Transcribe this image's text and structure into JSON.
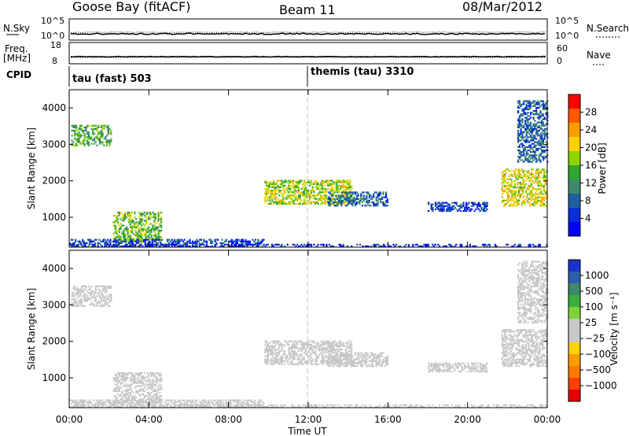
{
  "header": {
    "station": "Goose Bay (fitACF)",
    "beam": "Beam 11",
    "date": "08/Mar/2012"
  },
  "strips": {
    "nsky_label": "N.Sky",
    "nsearch_label": "N.Search",
    "nsky_ticks": [
      "10^5",
      "10^0"
    ],
    "nsearch_ticks": [
      "10^5",
      "10^0"
    ],
    "freq_label_1": "Freq.",
    "freq_label_2": "[MHz]",
    "freq_ticks": [
      "18",
      "8"
    ],
    "nave_label": "Nave",
    "nave_ticks": [
      "60",
      "0"
    ],
    "cpid_label": "CPID",
    "cpid_modes": [
      {
        "text": "tau (fast) 503",
        "start_hour": 0
      },
      {
        "text": "themis (tau) 3310",
        "start_hour": 12
      }
    ]
  },
  "axes": {
    "ylabel": "Slant Range [km]",
    "xlabel": "Time UT",
    "x_ticks": [
      "00:00",
      "04:00",
      "08:00",
      "12:00",
      "16:00",
      "20:00",
      "00:00"
    ],
    "y_ticks": [
      "4000",
      "3000",
      "2000",
      "1000"
    ]
  },
  "power_colorbar": {
    "label": "Power [dB]",
    "ticks": [
      "28",
      "24",
      "20",
      "16",
      "12",
      "8",
      "4"
    ],
    "colors": [
      "#ff0000",
      "#ff5a00",
      "#ff9c00",
      "#ffd200",
      "#8fd400",
      "#2ea82e",
      "#3c8a6a",
      "#1f5fa0",
      "#0a2fd8",
      "#0000ff"
    ]
  },
  "velocity_colorbar": {
    "label": "Velocity [m s⁻¹]",
    "ticks": [
      "1000",
      "500",
      "100",
      "25",
      "−25",
      "−100",
      "−500",
      "−1000"
    ],
    "colors": [
      "#1a33cc",
      "#2f5faa",
      "#3c8a6a",
      "#3ab03a",
      "#7fd23a",
      "#c8c8c8",
      "#c8c8c8",
      "#ffd200",
      "#ff9c00",
      "#ff7a00",
      "#ff4000",
      "#e60000"
    ]
  },
  "chart_data": [
    {
      "type": "scatter",
      "title": "Power [dB]",
      "xlabel": "Time UT",
      "ylabel": "Slant Range [km]",
      "xlim": [
        0,
        24
      ],
      "ylim": [
        180,
        4500
      ],
      "clim": [
        0,
        32
      ],
      "regions": [
        {
          "t_start": 0.1,
          "t_end": 2.1,
          "r_start": 2950,
          "r_end": 3500,
          "value": 14
        },
        {
          "t_start": 2.2,
          "t_end": 4.6,
          "r_start": 300,
          "r_end": 1150,
          "value": 16
        },
        {
          "t_start": 0.0,
          "t_end": 9.8,
          "r_start": 180,
          "r_end": 400,
          "value": 6
        },
        {
          "t_start": 9.8,
          "t_end": 14.2,
          "r_start": 1350,
          "r_end": 2000,
          "value": 18
        },
        {
          "t_start": 13.0,
          "t_end": 16.0,
          "r_start": 1300,
          "r_end": 1700,
          "value": 8
        },
        {
          "t_start": 18.0,
          "t_end": 21.0,
          "r_start": 1150,
          "r_end": 1400,
          "value": 6
        },
        {
          "t_start": 21.7,
          "t_end": 24.0,
          "r_start": 1300,
          "r_end": 2300,
          "value": 20
        },
        {
          "t_start": 22.5,
          "t_end": 24.0,
          "r_start": 2500,
          "r_end": 4200,
          "value": 8
        },
        {
          "t_start": 0.0,
          "t_end": 24.0,
          "r_start": 180,
          "r_end": 260,
          "value": 4
        }
      ]
    },
    {
      "type": "scatter",
      "title": "Velocity [m s-1]",
      "xlabel": "Time UT",
      "ylabel": "Slant Range [km]",
      "xlim": [
        0,
        24
      ],
      "ylim": [
        180,
        4500
      ],
      "clim": [
        -1000,
        1000
      ],
      "regions": [
        {
          "t_start": 0.1,
          "t_end": 2.1,
          "r_start": 2950,
          "r_end": 3500,
          "value": 0
        },
        {
          "t_start": 2.2,
          "t_end": 4.6,
          "r_start": 300,
          "r_end": 1150,
          "value": 0
        },
        {
          "t_start": 0.0,
          "t_end": 9.8,
          "r_start": 180,
          "r_end": 400,
          "value": -50
        },
        {
          "t_start": 9.8,
          "t_end": 14.2,
          "r_start": 1350,
          "r_end": 2000,
          "value": 0
        },
        {
          "t_start": 13.0,
          "t_end": 16.0,
          "r_start": 1300,
          "r_end": 1700,
          "value": 0
        },
        {
          "t_start": 18.0,
          "t_end": 21.0,
          "r_start": 1150,
          "r_end": 1400,
          "value": 0
        },
        {
          "t_start": 21.7,
          "t_end": 24.0,
          "r_start": 1300,
          "r_end": 2300,
          "value": 0
        },
        {
          "t_start": 22.5,
          "t_end": 24.0,
          "r_start": 2500,
          "r_end": 4200,
          "value": -100
        },
        {
          "t_start": 0.0,
          "t_end": 24.0,
          "r_start": 180,
          "r_end": 260,
          "value": 60
        }
      ]
    }
  ]
}
